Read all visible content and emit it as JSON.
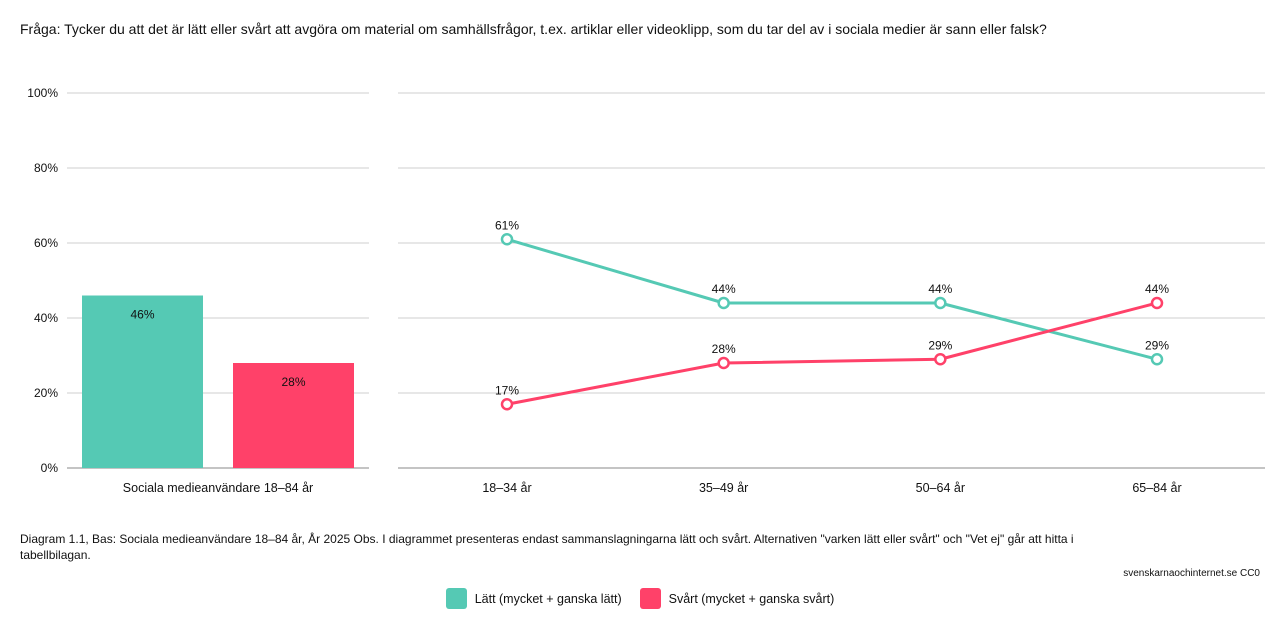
{
  "question": "Fråga: Tycker du att det är lätt eller svårt att avgöra om material om samhällsfrågor, t.ex. artiklar eller videoklipp, som du tar del av i sociala medier är sann eller falsk?",
  "caption": "Diagram 1.1, Bas: Sociala medieanvändare 18–84 år, År 2025 Obs. I diagrammet presenteras endast sammanslagningarna lätt och svårt. Alternativen \"varken lätt eller svårt\" och \"Vet ej\" går att hitta i tabellbilagan.",
  "source": "svenskarnaochinternet.se CC0",
  "legend": [
    {
      "label": "Lätt (mycket + ganska lätt)",
      "color": "#55c9b4"
    },
    {
      "label": "Svårt (mycket + ganska svårt)",
      "color": "#ff4169"
    }
  ],
  "chart_data": [
    {
      "type": "bar",
      "categories": [
        "Sociala medieanvändare 18–84 år"
      ],
      "series": [
        {
          "name": "Lätt (mycket + ganska lätt)",
          "values": [
            46
          ],
          "labels": [
            "46%"
          ],
          "color": "#55c9b4"
        },
        {
          "name": "Svårt (mycket + ganska svårt)",
          "values": [
            28
          ],
          "labels": [
            "28%"
          ],
          "color": "#ff4169"
        }
      ],
      "ylim": [
        0,
        100
      ],
      "yticks": [
        "0%",
        "20%",
        "40%",
        "60%",
        "80%",
        "100%"
      ],
      "grid": true
    },
    {
      "type": "line",
      "categories": [
        "18–34 år",
        "35–49 år",
        "50–64 år",
        "65–84 år"
      ],
      "series": [
        {
          "name": "Lätt (mycket + ganska lätt)",
          "values": [
            61,
            44,
            44,
            29
          ],
          "labels": [
            "61%",
            "44%",
            "44%",
            "29%"
          ],
          "color": "#55c9b4"
        },
        {
          "name": "Svårt (mycket + ganska svårt)",
          "values": [
            17,
            28,
            29,
            44
          ],
          "labels": [
            "17%",
            "28%",
            "29%",
            "44%"
          ],
          "color": "#ff4169"
        }
      ],
      "ylim": [
        0,
        100
      ],
      "grid": true
    }
  ]
}
